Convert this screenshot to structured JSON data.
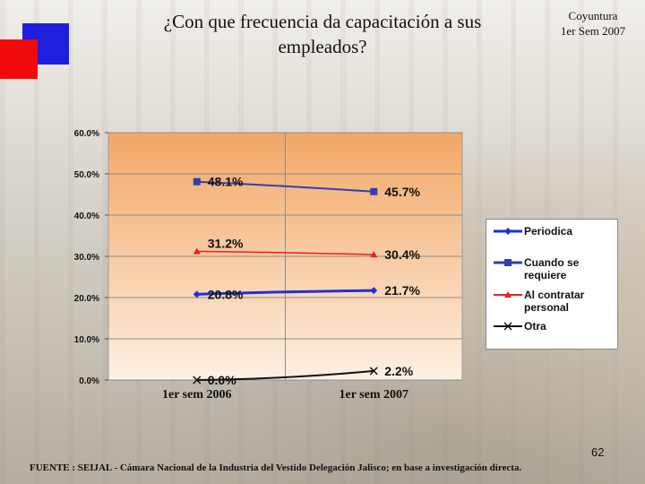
{
  "slide": {
    "title": "¿Con que frecuencia da capacitación a sus empleados?",
    "title_line1": "¿Con que frecuencia da capacitación a sus",
    "title_line2": "empleados?",
    "subtitle_line1": "Coyuntura",
    "subtitle_line2": "1er Sem 2007",
    "page_number": "62",
    "source": "FUENTE :  SEIJAL - Cámara Nacional de la Industria del Vestido Delegación Jalisco;  en base a investigación directa."
  },
  "colors": {
    "plot_top": "#f3a766",
    "plot_bottom": "#fdf0e2",
    "periodica": "#1f2fd6",
    "cuando": "#2f3fb0",
    "al_contratar": "#ee1c1c",
    "otra": "#111111"
  },
  "chart_data": {
    "type": "line",
    "title": "",
    "categories": [
      "1er sem 2006",
      "1er sem 2007"
    ],
    "ylim": [
      0,
      60
    ],
    "y_ticks": [
      "0.0%",
      "10.0%",
      "20.0%",
      "30.0%",
      "40.0%",
      "50.0%",
      "60.0%"
    ],
    "y_tick_values": [
      0,
      10,
      20,
      30,
      40,
      50,
      60
    ],
    "xlabel": "",
    "ylabel": "",
    "legend_position": "right",
    "series": [
      {
        "name": "Periodica",
        "values": [
          20.8,
          21.7
        ],
        "labels": [
          "20.8%",
          "21.7%"
        ],
        "marker": "diamond",
        "color": "#1f2fd6"
      },
      {
        "name": "Cuando se requiere",
        "values": [
          48.1,
          45.7
        ],
        "labels": [
          "48.1%",
          "45.7%"
        ],
        "marker": "square",
        "color": "#2f3fb0"
      },
      {
        "name": "Al contratar personal",
        "values": [
          31.2,
          30.4
        ],
        "labels": [
          "31.2%",
          "30.4%"
        ],
        "marker": "triangle",
        "color": "#ee1c1c"
      },
      {
        "name": "Otra",
        "values": [
          0.0,
          2.2
        ],
        "labels": [
          "0.0%",
          "2.2%"
        ],
        "marker": "x",
        "color": "#111111"
      }
    ],
    "legend": [
      {
        "line1": "Periodica",
        "line2": ""
      },
      {
        "line1": "Cuando se",
        "line2": "requiere"
      },
      {
        "line1": "Al contratar",
        "line2": "personal"
      },
      {
        "line1": "Otra",
        "line2": ""
      }
    ]
  }
}
